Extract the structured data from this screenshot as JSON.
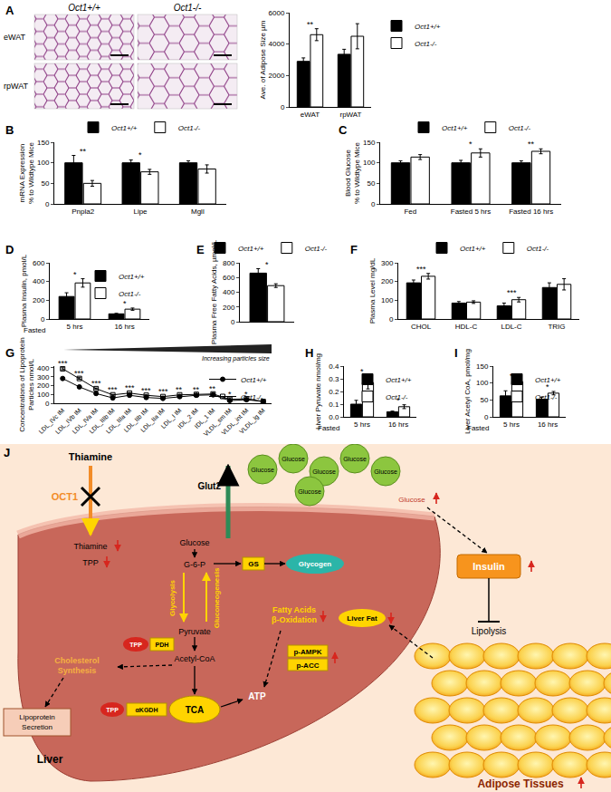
{
  "chart_data": [
    {
      "panel": "A",
      "type": "bar",
      "y_label": "Ave. of Adipose Size µm",
      "categories": [
        "eWAT",
        "rpWAT"
      ],
      "series": [
        {
          "name": "Oct1+/+",
          "color": "#000000",
          "values": [
            2900,
            3350
          ],
          "error": [
            220,
            320
          ]
        },
        {
          "name": "Oct1-/-",
          "color": "#ffffff",
          "values": [
            4600,
            4500
          ],
          "error": [
            380,
            800
          ]
        }
      ],
      "ylim": [
        0,
        6000
      ],
      "yticks": [
        0,
        2000,
        4000,
        6000
      ],
      "significance": [
        "**",
        null
      ],
      "legend": "right"
    },
    {
      "panel": "B",
      "type": "bar",
      "y_label": [
        "mRNA Expression",
        "% to Wildtype Mice"
      ],
      "categories": [
        "Pnpla2",
        "Lipe",
        "Mgll"
      ],
      "series": [
        {
          "name": "Oct1+/+",
          "color": "#000000",
          "values": [
            100,
            100,
            100
          ],
          "error": [
            18,
            7,
            5
          ]
        },
        {
          "name": "Oct1-/-",
          "color": "#ffffff",
          "values": [
            50,
            78,
            85
          ],
          "error": [
            7,
            6,
            10
          ]
        }
      ],
      "ylim": [
        0,
        150
      ],
      "yticks": [
        0,
        50,
        100,
        150
      ],
      "significance": [
        "**",
        "*",
        null
      ],
      "legend": "top"
    },
    {
      "panel": "C",
      "type": "bar",
      "y_label": [
        "Blood Glucose",
        "% to Wildtype Mice"
      ],
      "categories": [
        "Fed",
        "Fasted 5 hrs",
        "Fasted 16 hrs"
      ],
      "series": [
        {
          "name": "Oct1+/+",
          "color": "#000000",
          "values": [
            100,
            100,
            100
          ],
          "error": [
            5,
            6,
            5
          ]
        },
        {
          "name": "Oct1-/-",
          "color": "#ffffff",
          "values": [
            114,
            124,
            128
          ],
          "error": [
            6,
            10,
            6
          ]
        }
      ],
      "ylim": [
        0,
        150
      ],
      "yticks": [
        0,
        50,
        100,
        150
      ],
      "significance": [
        null,
        "*",
        "**"
      ],
      "legend": "top"
    },
    {
      "panel": "D",
      "type": "bar",
      "y_label": "Plasma Insulin, pmol/L",
      "x_label": "Fasted",
      "categories": [
        "5 hrs",
        "16 hrs"
      ],
      "series": [
        {
          "name": "Oct1+/+",
          "color": "#000000",
          "values": [
            240,
            55
          ],
          "error": [
            40,
            5
          ]
        },
        {
          "name": "Oct1-/-",
          "color": "#ffffff",
          "values": [
            385,
            105
          ],
          "error": [
            45,
            12
          ]
        }
      ],
      "ylim": [
        0,
        600
      ],
      "yticks": [
        0,
        200,
        400,
        600
      ],
      "significance": [
        "*",
        "*"
      ],
      "legend": "top right"
    },
    {
      "panel": "E",
      "type": "bar",
      "y_label": "Plasma Free Fatty Acids, µmol/L",
      "categories": [
        null
      ],
      "series": [
        {
          "name": "Oct1+/+",
          "color": "#000000",
          "values": [
            660
          ],
          "error": [
            60
          ]
        },
        {
          "name": "Oct1-/-",
          "color": "#ffffff",
          "values": [
            490
          ],
          "error": [
            25
          ]
        }
      ],
      "ylim": [
        0,
        800
      ],
      "yticks": [
        0,
        200,
        400,
        600,
        800
      ],
      "significance": [
        "*"
      ],
      "legend": "top",
      "tick_labels": "y"
    },
    {
      "panel": "F",
      "type": "bar",
      "y_label": "Plasma Level mg/dL",
      "categories": [
        "CHOL",
        "HDL-C",
        "LDL-C",
        "TRIG"
      ],
      "series": [
        {
          "name": "Oct1+/+",
          "color": "#000000",
          "values": [
            193,
            85,
            70,
            168
          ],
          "error": [
            15,
            8,
            15,
            25
          ]
        },
        {
          "name": "Oct1-/-",
          "color": "#ffffff",
          "values": [
            228,
            90,
            103,
            185
          ],
          "error": [
            15,
            7,
            12,
            30
          ]
        }
      ],
      "ylim": [
        0,
        300
      ],
      "yticks": [
        0,
        100,
        200,
        300
      ],
      "significance": [
        "***",
        null,
        "***",
        null
      ],
      "legend": "top"
    },
    {
      "panel": "G",
      "type": "line",
      "y_label": [
        "Concentrations of Lipoprotein",
        "Particles nmol/L"
      ],
      "annotation": "Increasing particles size",
      "categories": [
        "LDL_IVc IM",
        "LDL_IVb IM",
        "LDL_IVa IM",
        "LDL_IIIb IM",
        "LDL_IIIa IM",
        "LDL_IIb IM",
        "LDL_IIa IM",
        "LDL_I IM",
        "IDL_2 IM",
        "IDL_1 IM",
        "VLDL_sm IM",
        "VLDL_int IM",
        "VLDL_lg IM"
      ],
      "series": [
        {
          "name": "Oct1+/+",
          "color": "#000000",
          "marker": "circle",
          "values": [
            280,
            185,
            110,
            60,
            90,
            65,
            55,
            75,
            90,
            95,
            30,
            40,
            20
          ],
          "error": [
            12,
            10,
            6,
            4,
            5,
            4,
            3,
            4,
            5,
            5,
            3,
            3,
            2
          ]
        },
        {
          "name": "Oct1-/-",
          "color": "#000000",
          "marker": "square-open",
          "values": [
            390,
            280,
            165,
            95,
            115,
            90,
            75,
            95,
            100,
            105,
            45,
            50,
            20
          ],
          "error": [
            12,
            10,
            8,
            5,
            6,
            5,
            4,
            5,
            5,
            5,
            4,
            4,
            2
          ]
        }
      ],
      "ylim": [
        0,
        420
      ],
      "yticks": [
        0,
        100,
        200,
        300,
        400
      ],
      "significance": [
        "***",
        "***",
        "***",
        "***",
        "***",
        "***",
        "***",
        "**",
        "**",
        "**",
        "*",
        "*",
        null
      ],
      "legend": "top right"
    },
    {
      "panel": "H",
      "type": "bar",
      "y_label": "Liver Pyruvate nmol/mg",
      "x_label": "Fasted",
      "categories": [
        "5 hrs",
        "16 hrs"
      ],
      "series": [
        {
          "name": "Oct1+/+",
          "color": "#000000",
          "values": [
            0.1,
            0.04
          ],
          "error": [
            0.03,
            0.005
          ]
        },
        {
          "name": "Oct1-/-",
          "color": "#ffffff",
          "values": [
            0.27,
            0.08
          ],
          "error": [
            0.05,
            0.015
          ]
        }
      ],
      "ylim": [
        0,
        0.4
      ],
      "yticks": [
        {
          "value": 0,
          "label": "0.0"
        },
        0.1,
        0.2,
        0.3,
        0.4
      ],
      "significance": [
        "*",
        "*"
      ],
      "legend": "top right"
    },
    {
      "panel": "I",
      "type": "bar",
      "y_label": "Liver Acetyl CoA, pmol/mg",
      "x_label": "Fasted",
      "categories": [
        "5 hrs",
        "16 hrs"
      ],
      "series": [
        {
          "name": "Oct1+/+",
          "color": "#000000",
          "values": [
            62,
            52
          ],
          "error": [
            15,
            6
          ]
        },
        {
          "name": "Oct1-/-",
          "color": "#ffffff",
          "values": [
            104,
            70
          ],
          "error": [
            2,
            5
          ]
        }
      ],
      "ylim": [
        0,
        150
      ],
      "yticks": [
        0,
        50,
        100,
        150
      ],
      "significance": [
        "*",
        "*"
      ],
      "legend": "top right"
    }
  ],
  "images": {
    "columns": [
      "Oct1+/+",
      "Oct1-/-"
    ],
    "rows": [
      "eWAT",
      "rpWAT"
    ]
  },
  "diagram": {
    "panel": "J",
    "thiamine_out": "Thiamine",
    "oct1": "OCT1",
    "glut2": "Glut2",
    "glucose_cluster": [
      "Glucose",
      "Glucose",
      "Glucose",
      "Glucose",
      "Glucose",
      "Glucose"
    ],
    "glucose_blood": "Glucose",
    "glucose_in": "Glucose",
    "thiamine_in": "Thiamine",
    "tpp_in": "TPP",
    "g6p": "G-6-P",
    "gs": "GS",
    "glycogen": "Glycogen",
    "glycolysis": "Glycolysis",
    "gluconeogenesis": "Gluconeogenesis",
    "pyruvate": "Pyruvate",
    "tpp_pdh": "TPP",
    "pdh": "PDH",
    "acetyl_coa": "Acetyl-CoA",
    "cholesterol": [
      "Cholesterol",
      "Synthesis"
    ],
    "lipoprotein": [
      "Lipoprotein",
      "Secretion"
    ],
    "tpp_tca": "TPP",
    "akgdh": "αKGDH",
    "tca": "TCA",
    "atp": "ATP",
    "fatty_acids": [
      "Fatty Acids",
      "β-Oxidation"
    ],
    "liver_fat": "Liver Fat",
    "pampk": "p-AMPK",
    "pacc": "p-ACC",
    "liver": "Liver",
    "insulin": "Insulin",
    "lipolysis": "Lipolysis",
    "adipose": "Adipose Tissues"
  }
}
